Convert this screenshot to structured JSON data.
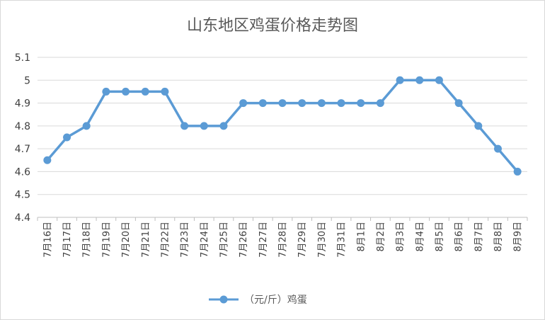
{
  "chart_data": {
    "type": "line",
    "title": "山东地区鸡蛋价格走势图",
    "xlabel": "",
    "ylabel": "",
    "categories": [
      "7月16日",
      "7月17日",
      "7月18日",
      "7月19日",
      "7月20日",
      "7月21日",
      "7月22日",
      "7月23日",
      "7月24日",
      "7月25日",
      "7月26日",
      "7月27日",
      "7月28日",
      "7月29日",
      "7月30日",
      "7月31日",
      "8月1日",
      "8月2日",
      "8月3日",
      "8月4日",
      "8月5日",
      "8月6日",
      "8月7日",
      "8月8日",
      "8月9日"
    ],
    "series": [
      {
        "name": "（元/斤）鸡蛋",
        "color": "#5b9bd5",
        "values": [
          4.65,
          4.75,
          4.8,
          4.95,
          4.95,
          4.95,
          4.95,
          4.8,
          4.8,
          4.8,
          4.9,
          4.9,
          4.9,
          4.9,
          4.9,
          4.9,
          4.9,
          4.9,
          5.0,
          5.0,
          5.0,
          4.9,
          4.8,
          4.7,
          4.6
        ]
      }
    ],
    "ylim": [
      4.4,
      5.1
    ],
    "yticks": [
      "4.4",
      "4.5",
      "4.6",
      "4.7",
      "4.8",
      "4.9",
      "5",
      "5.1"
    ],
    "grid": true,
    "legend_position": "bottom"
  }
}
